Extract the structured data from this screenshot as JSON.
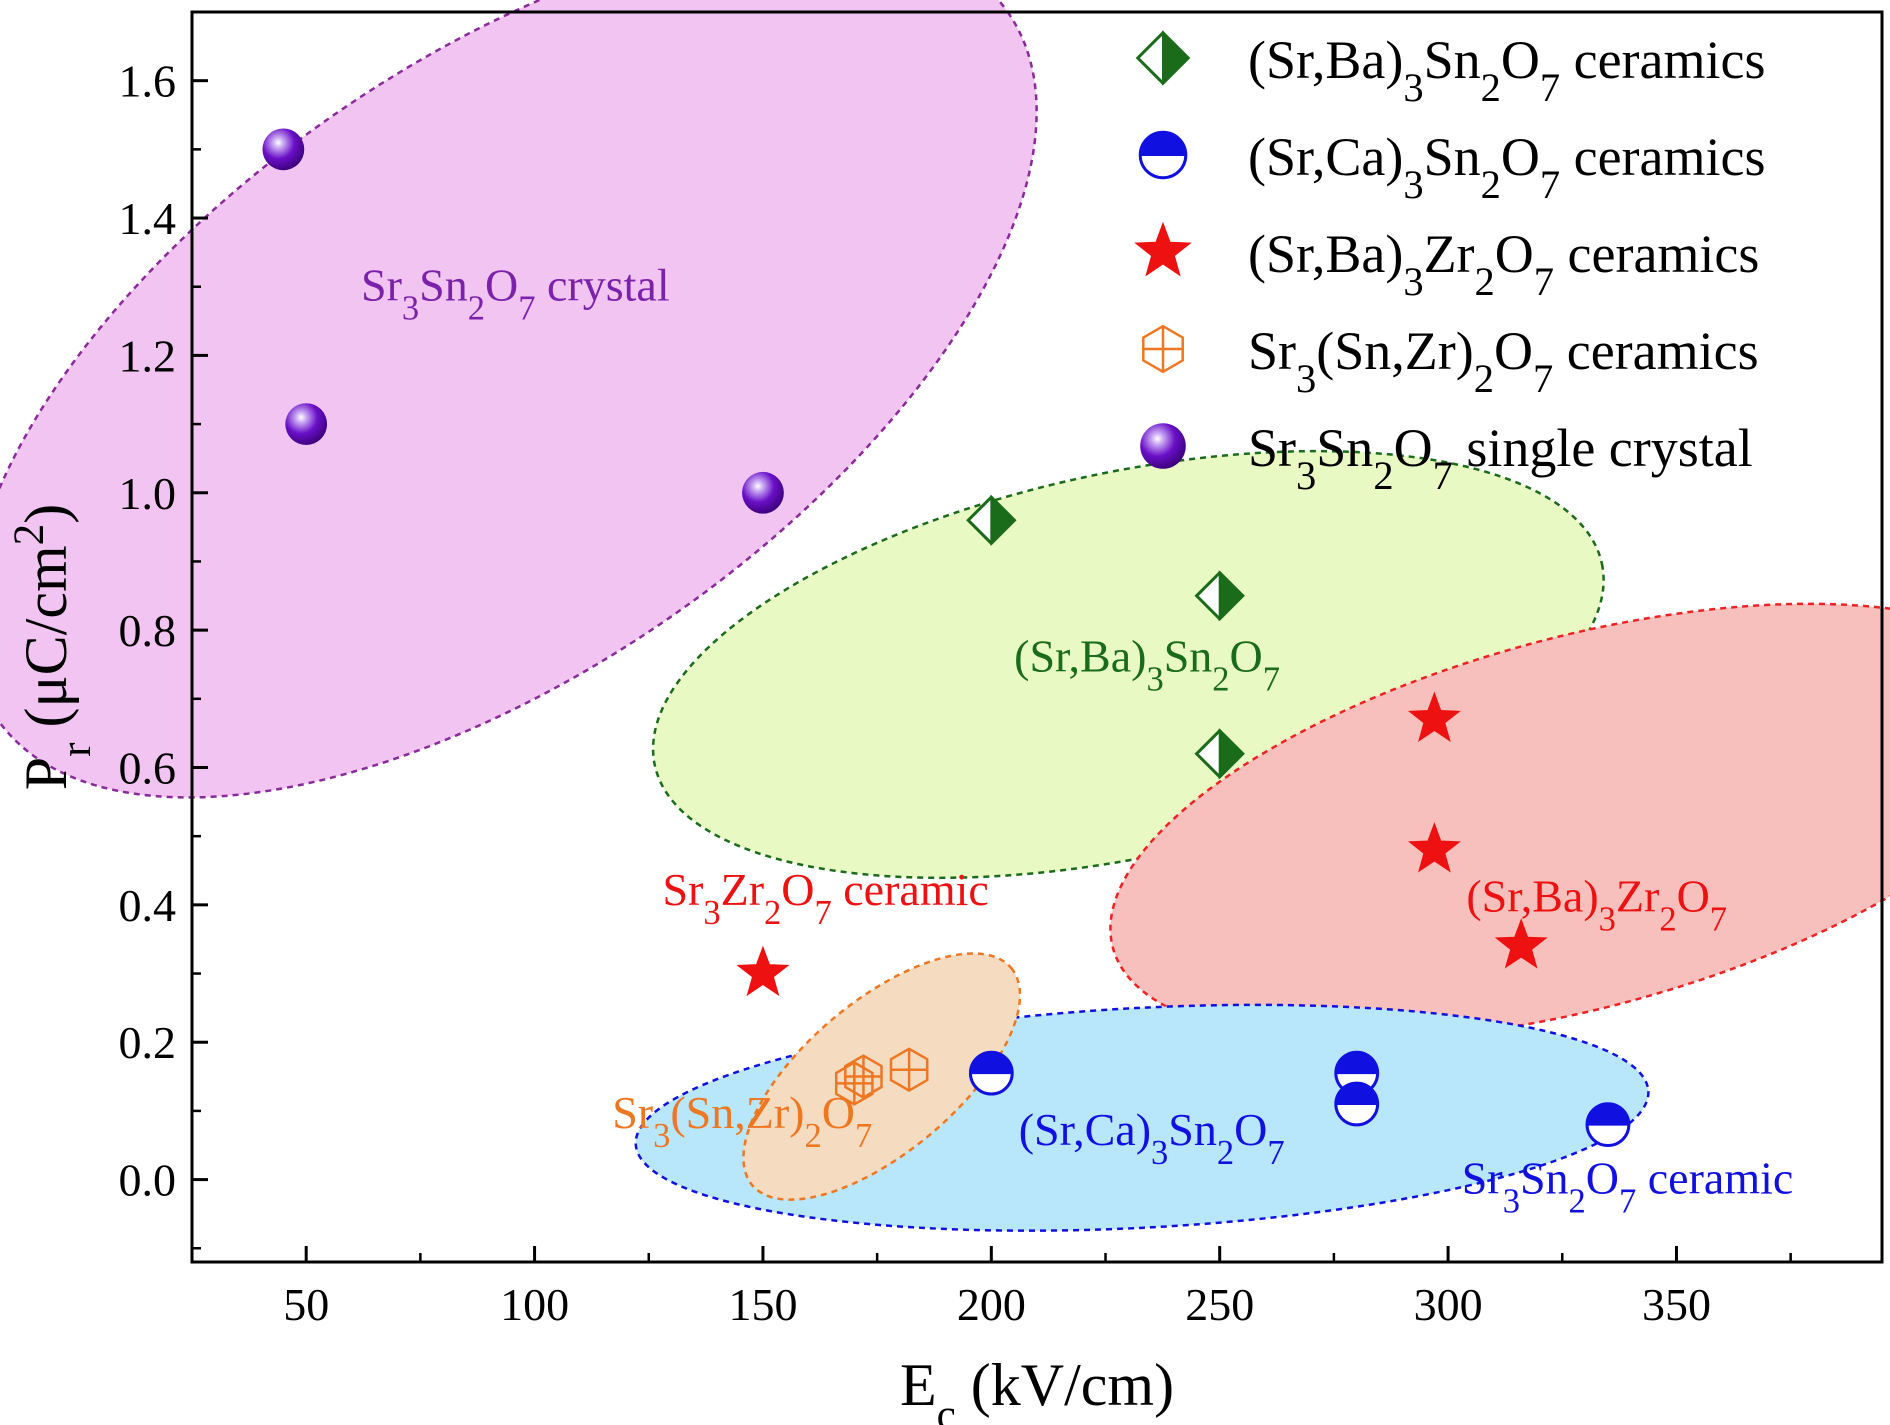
{
  "chart_data": {
    "type": "scatter",
    "xlabel": {
      "main": "E",
      "sub": "c",
      "rest": " (kV/cm)"
    },
    "ylabel": {
      "main": "P",
      "sub": "r",
      "rest1": " (μC/cm",
      "sup": "2",
      "rest2": ")"
    },
    "xlim": [
      25,
      395
    ],
    "ylim": [
      -0.12,
      1.7
    ],
    "xticks": [
      "50",
      "100",
      "150",
      "200",
      "250",
      "300",
      "350"
    ],
    "yticks": [
      "0.0",
      "0.2",
      "0.4",
      "0.6",
      "0.8",
      "1.0",
      "1.2",
      "1.4",
      "1.6"
    ],
    "legend_position": "top-right",
    "series": [
      {
        "name": "(Sr,Ba)3Sn2O7 ceramics",
        "marker": "half-diamond",
        "color": "#1a6b1a",
        "points": [
          [
            200,
            0.96
          ],
          [
            250,
            0.85
          ],
          [
            250,
            0.62
          ]
        ]
      },
      {
        "name": "(Sr,Ca)3Sn2O7 ceramics",
        "marker": "half-circle",
        "color": "#1010e0",
        "points": [
          [
            200,
            0.155
          ],
          [
            280,
            0.155
          ],
          [
            280,
            0.11
          ],
          [
            335,
            0.08
          ]
        ]
      },
      {
        "name": "(Sr,Ba)3Zr2O7 ceramics",
        "marker": "star",
        "color": "#ee1111",
        "points": [
          [
            297,
            0.67
          ],
          [
            297,
            0.48
          ],
          [
            316,
            0.34
          ],
          [
            150,
            0.3
          ]
        ]
      },
      {
        "name": "Sr3(Sn,Zr)2O7 ceramics",
        "marker": "crossed-hexagon",
        "color": "#ee7722",
        "points": [
          [
            170,
            0.14
          ],
          [
            172,
            0.15
          ],
          [
            182,
            0.16
          ]
        ]
      },
      {
        "name": "Sr3Sn2O7 single crystal",
        "marker": "sphere",
        "color": "#6a10c8",
        "points": [
          [
            45,
            1.5
          ],
          [
            50,
            1.1
          ],
          [
            150,
            1.0
          ]
        ]
      }
    ],
    "regions": [
      {
        "name": "Sr3Sn2O7 crystal",
        "fill": "#f2c4f2",
        "stroke": "#8a2a9a",
        "cx": 93,
        "cy": 1.185,
        "rx": 135,
        "ry": 0.44,
        "rot": -35
      },
      {
        "name": "(Sr,Ba)3Sn2O7",
        "fill": "#e8f9c4",
        "stroke": "#1a6b1a",
        "cx": 230,
        "cy": 0.75,
        "rx": 106,
        "ry": 0.28,
        "rot": -12
      },
      {
        "name": "(Sr,Ba)3Zr2O7",
        "fill": "#f8c0bc",
        "stroke": "#ee2222",
        "cx": 329,
        "cy": 0.52,
        "rx": 106,
        "ry": 0.27,
        "rot": -15
      },
      {
        "name": "(Sr,Ca)3Sn2O7",
        "fill": "#b8e6fa",
        "stroke": "#1010e0",
        "cx": 233,
        "cy": 0.09,
        "rx": 111,
        "ry": 0.16,
        "rot": -3
      },
      {
        "name": "Sr3(Sn,Zr)2O7",
        "fill": "#f5dcc0",
        "stroke": "#ee7722",
        "cx": 176,
        "cy": 0.15,
        "rx": 37,
        "ry": 0.11,
        "rot": -40
      }
    ],
    "annotations": [
      {
        "color": "#7a22aa",
        "x": 62,
        "y": 1.28,
        "parts": [
          [
            "Sr",
            ""
          ],
          [
            "3",
            "sub"
          ],
          [
            "Sn",
            ""
          ],
          [
            "2",
            "sub"
          ],
          [
            "O",
            ""
          ],
          [
            "7",
            "sub"
          ],
          [
            " crystal",
            ""
          ]
        ]
      },
      {
        "color": "#1a6b1a",
        "x": 205,
        "y": 0.74,
        "parts": [
          [
            "(Sr,Ba)",
            ""
          ],
          [
            "3",
            "sub"
          ],
          [
            "Sn",
            ""
          ],
          [
            "2",
            "sub"
          ],
          [
            "O",
            ""
          ],
          [
            "7",
            "sub"
          ]
        ]
      },
      {
        "color": "#ee1111",
        "x": 304,
        "y": 0.39,
        "parts": [
          [
            "(Sr,Ba)",
            ""
          ],
          [
            "3",
            "sub"
          ],
          [
            "Zr",
            ""
          ],
          [
            "2",
            "sub"
          ],
          [
            "O",
            ""
          ],
          [
            "7",
            "sub"
          ]
        ]
      },
      {
        "color": "#ee1111",
        "x": 128,
        "y": 0.4,
        "parts": [
          [
            "Sr",
            ""
          ],
          [
            "3",
            "sub"
          ],
          [
            "Zr",
            ""
          ],
          [
            "2",
            "sub"
          ],
          [
            "O",
            ""
          ],
          [
            "7",
            "sub"
          ],
          [
            " ceramic",
            ""
          ]
        ]
      },
      {
        "color": "#ee7722",
        "x": 117,
        "y": 0.075,
        "parts": [
          [
            "Sr",
            ""
          ],
          [
            "3",
            "sub"
          ],
          [
            "(Sn,Zr)",
            ""
          ],
          [
            "2",
            "sub"
          ],
          [
            "O",
            ""
          ],
          [
            "7",
            "sub"
          ]
        ]
      },
      {
        "color": "#1010e0",
        "x": 206,
        "y": 0.05,
        "parts": [
          [
            "(Sr,Ca)",
            ""
          ],
          [
            "3",
            "sub"
          ],
          [
            "Sn",
            ""
          ],
          [
            "2",
            "sub"
          ],
          [
            "O",
            ""
          ],
          [
            "7",
            "sub"
          ]
        ]
      },
      {
        "color": "#1010e0",
        "x": 303,
        "y": -0.02,
        "parts": [
          [
            "Sr",
            ""
          ],
          [
            "3",
            "sub"
          ],
          [
            "Sn",
            ""
          ],
          [
            "2",
            "sub"
          ],
          [
            "O",
            ""
          ],
          [
            "7",
            "sub"
          ],
          [
            " ceramic",
            ""
          ]
        ]
      }
    ],
    "legend": [
      {
        "marker": "half-diamond",
        "color": "#1a6b1a",
        "parts": [
          [
            "(Sr,Ba)",
            ""
          ],
          [
            "3",
            "sub"
          ],
          [
            "Sn",
            ""
          ],
          [
            "2",
            "sub"
          ],
          [
            "O",
            ""
          ],
          [
            "7",
            "sub"
          ],
          [
            " ceramics",
            ""
          ]
        ]
      },
      {
        "marker": "half-circle",
        "color": "#1010e0",
        "parts": [
          [
            "(Sr,Ca)",
            ""
          ],
          [
            "3",
            "sub"
          ],
          [
            "Sn",
            ""
          ],
          [
            "2",
            "sub"
          ],
          [
            "O",
            ""
          ],
          [
            "7",
            "sub"
          ],
          [
            " ceramics",
            ""
          ]
        ]
      },
      {
        "marker": "star",
        "color": "#ee1111",
        "parts": [
          [
            "(Sr,Ba)",
            ""
          ],
          [
            "3",
            "sub"
          ],
          [
            "Zr",
            ""
          ],
          [
            "2",
            "sub"
          ],
          [
            "O",
            ""
          ],
          [
            "7",
            "sub"
          ],
          [
            " ceramics",
            ""
          ]
        ]
      },
      {
        "marker": "crossed-hexagon",
        "color": "#ee7722",
        "parts": [
          [
            "Sr",
            ""
          ],
          [
            "3",
            "sub"
          ],
          [
            "(Sn,Zr)",
            ""
          ],
          [
            "2",
            "sub"
          ],
          [
            "O",
            ""
          ],
          [
            "7",
            "sub"
          ],
          [
            " ceramics",
            ""
          ]
        ]
      },
      {
        "marker": "sphere",
        "color": "#6a10c8",
        "parts": [
          [
            "Sr",
            ""
          ],
          [
            "3",
            "sub"
          ],
          [
            "Sn",
            ""
          ],
          [
            "2",
            "sub"
          ],
          [
            "O",
            ""
          ],
          [
            "7",
            "sub"
          ],
          [
            " single crystal",
            ""
          ]
        ]
      }
    ]
  }
}
